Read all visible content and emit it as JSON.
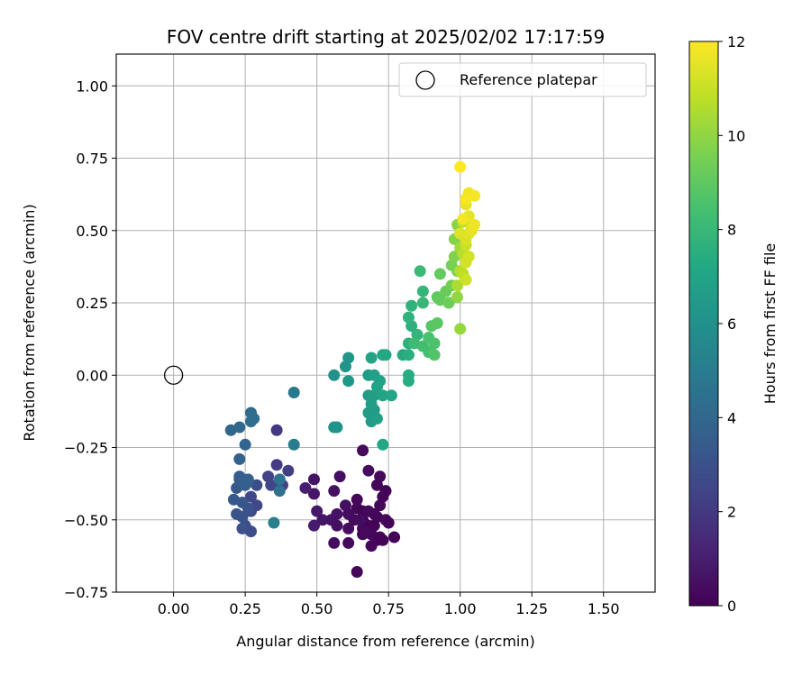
{
  "chart_data": {
    "type": "scatter",
    "title": "FOV centre drift starting at 2025/02/02 17:17:59",
    "xlabel": "Angular distance from reference (arcmin)",
    "ylabel": "Rotation from reference (arcmin)",
    "xlim": [
      -0.2,
      1.68
    ],
    "ylim": [
      -0.75,
      1.11
    ],
    "xticks": [
      "0.00",
      "0.25",
      "0.50",
      "0.75",
      "1.00",
      "1.25",
      "1.50"
    ],
    "xtick_values": [
      0,
      0.25,
      0.5,
      0.75,
      1.0,
      1.25,
      1.5
    ],
    "yticks": [
      "−0.75",
      "−0.50",
      "−0.25",
      "0.00",
      "0.25",
      "0.50",
      "0.75",
      "1.00"
    ],
    "ytick_values": [
      -0.75,
      -0.5,
      -0.25,
      0,
      0.25,
      0.5,
      0.75,
      1.0
    ],
    "grid": true,
    "legend": {
      "position": "top-right",
      "entries": [
        {
          "label": "Reference platepar",
          "marker": "open-circle",
          "x": 0.0,
          "y": 0.0
        }
      ]
    },
    "colorbar": {
      "label": "Hours from first FF file",
      "colormap": "viridis",
      "range": [
        0,
        12
      ],
      "ticks": [
        "0",
        "2",
        "4",
        "6",
        "8",
        "10",
        "12"
      ],
      "tick_values": [
        0,
        2,
        4,
        6,
        8,
        10,
        12
      ]
    },
    "points": [
      [
        0.64,
        -0.68,
        0.2
      ],
      [
        0.66,
        -0.26,
        0.3
      ],
      [
        0.68,
        -0.33,
        0.4
      ],
      [
        0.72,
        -0.35,
        0.3
      ],
      [
        0.58,
        -0.35,
        0.5
      ],
      [
        0.49,
        -0.36,
        0.6
      ],
      [
        0.56,
        -0.4,
        0.5
      ],
      [
        0.49,
        -0.41,
        0.7
      ],
      [
        0.6,
        -0.45,
        0.5
      ],
      [
        0.61,
        -0.48,
        0.4
      ],
      [
        0.57,
        -0.48,
        0.6
      ],
      [
        0.5,
        -0.47,
        0.8
      ],
      [
        0.52,
        -0.5,
        0.7
      ],
      [
        0.49,
        -0.52,
        0.9
      ],
      [
        0.57,
        -0.52,
        0.5
      ],
      [
        0.61,
        -0.53,
        0.4
      ],
      [
        0.61,
        -0.58,
        0.3
      ],
      [
        0.56,
        -0.58,
        0.4
      ],
      [
        0.63,
        -0.5,
        0.3
      ],
      [
        0.64,
        -0.46,
        0.2
      ],
      [
        0.64,
        -0.43,
        0.2
      ],
      [
        0.66,
        -0.47,
        0.1
      ],
      [
        0.66,
        -0.5,
        0.1
      ],
      [
        0.66,
        -0.53,
        0.2
      ],
      [
        0.66,
        -0.55,
        0.1
      ],
      [
        0.68,
        -0.52,
        0.1
      ],
      [
        0.69,
        -0.55,
        0.2
      ],
      [
        0.69,
        -0.59,
        0.2
      ],
      [
        0.7,
        -0.52,
        0.1
      ],
      [
        0.71,
        -0.49,
        0.1
      ],
      [
        0.71,
        -0.57,
        0.2
      ],
      [
        0.72,
        -0.45,
        0.2
      ],
      [
        0.72,
        -0.56,
        0.1
      ],
      [
        0.73,
        -0.57,
        0.1
      ],
      [
        0.74,
        -0.5,
        0.2
      ],
      [
        0.75,
        -0.51,
        0.1
      ],
      [
        0.77,
        -0.56,
        0.1
      ],
      [
        0.73,
        -0.42,
        0.1
      ],
      [
        0.71,
        -0.38,
        0.2
      ],
      [
        0.68,
        -0.47,
        0.3
      ],
      [
        0.67,
        -0.54,
        0.3
      ],
      [
        0.65,
        -0.5,
        0.4
      ],
      [
        0.7,
        -0.48,
        0.2
      ],
      [
        0.74,
        -0.4,
        0.1
      ],
      [
        0.55,
        -0.5,
        0.6
      ],
      [
        0.46,
        -0.39,
        1.0
      ],
      [
        0.36,
        -0.19,
        2.0
      ],
      [
        0.36,
        -0.31,
        2.1
      ],
      [
        0.4,
        -0.33,
        2.2
      ],
      [
        0.38,
        -0.38,
        2.3
      ],
      [
        0.33,
        -0.35,
        2.4
      ],
      [
        0.34,
        -0.38,
        2.5
      ],
      [
        0.29,
        -0.38,
        2.8
      ],
      [
        0.29,
        -0.45,
        2.6
      ],
      [
        0.27,
        -0.42,
        2.6
      ],
      [
        0.27,
        -0.47,
        2.7
      ],
      [
        0.25,
        -0.52,
        2.8
      ],
      [
        0.27,
        -0.54,
        2.9
      ],
      [
        0.24,
        -0.53,
        3.0
      ],
      [
        0.22,
        -0.48,
        3.0
      ],
      [
        0.24,
        -0.49,
        3.1
      ],
      [
        0.26,
        -0.46,
        3.1
      ],
      [
        0.24,
        -0.44,
        3.2
      ],
      [
        0.21,
        -0.43,
        3.3
      ],
      [
        0.22,
        -0.39,
        3.3
      ],
      [
        0.23,
        -0.36,
        3.4
      ],
      [
        0.23,
        -0.35,
        3.5
      ],
      [
        0.24,
        -0.37,
        3.5
      ],
      [
        0.26,
        -0.37,
        3.6
      ],
      [
        0.25,
        -0.38,
        3.6
      ],
      [
        0.23,
        -0.29,
        3.8
      ],
      [
        0.25,
        -0.24,
        3.9
      ],
      [
        0.26,
        -0.36,
        3.7
      ],
      [
        0.2,
        -0.19,
        4.0
      ],
      [
        0.23,
        -0.18,
        4.1
      ],
      [
        0.27,
        -0.13,
        4.2
      ],
      [
        0.27,
        -0.16,
        4.3
      ],
      [
        0.28,
        -0.15,
        4.3
      ],
      [
        0.37,
        -0.4,
        4.4
      ],
      [
        0.37,
        -0.36,
        4.5
      ],
      [
        0.42,
        -0.06,
        4.8
      ],
      [
        0.42,
        -0.24,
        5.0
      ],
      [
        0.35,
        -0.51,
        5.2
      ],
      [
        0.57,
        -0.18,
        6.0
      ],
      [
        0.56,
        -0.18,
        6.1
      ],
      [
        0.56,
        0.0,
        6.1
      ],
      [
        0.6,
        0.03,
        6.2
      ],
      [
        0.61,
        0.06,
        6.3
      ],
      [
        0.61,
        -0.02,
        6.3
      ],
      [
        0.68,
        0.0,
        6.5
      ],
      [
        0.68,
        -0.07,
        6.5
      ],
      [
        0.68,
        -0.13,
        6.6
      ],
      [
        0.69,
        -0.16,
        6.6
      ],
      [
        0.7,
        -0.12,
        6.6
      ],
      [
        0.69,
        -0.1,
        6.7
      ],
      [
        0.7,
        -0.07,
        6.7
      ],
      [
        0.71,
        -0.15,
        6.8
      ],
      [
        0.7,
        0.0,
        6.8
      ],
      [
        0.72,
        -0.02,
        6.9
      ],
      [
        0.71,
        -0.04,
        6.9
      ],
      [
        0.73,
        -0.07,
        7.0
      ],
      [
        0.69,
        0.06,
        7.0
      ],
      [
        0.73,
        0.07,
        7.1
      ],
      [
        0.76,
        -0.07,
        7.1
      ],
      [
        0.74,
        0.07,
        7.2
      ],
      [
        0.73,
        -0.24,
        7.2
      ],
      [
        0.8,
        0.07,
        7.3
      ],
      [
        0.82,
        0.0,
        7.4
      ],
      [
        0.82,
        -0.02,
        7.4
      ],
      [
        0.82,
        0.07,
        7.5
      ],
      [
        0.82,
        0.11,
        7.6
      ],
      [
        0.83,
        0.17,
        7.6
      ],
      [
        0.82,
        0.2,
        7.7
      ],
      [
        0.83,
        0.24,
        7.7
      ],
      [
        0.85,
        0.14,
        7.8
      ],
      [
        0.87,
        0.29,
        7.9
      ],
      [
        0.87,
        0.25,
        8.0
      ],
      [
        0.86,
        0.36,
        8.1
      ],
      [
        0.84,
        0.11,
        8.2
      ],
      [
        0.87,
        0.1,
        8.3
      ],
      [
        0.89,
        0.08,
        8.4
      ],
      [
        0.89,
        0.13,
        8.5
      ],
      [
        0.91,
        0.11,
        8.6
      ],
      [
        0.91,
        0.07,
        8.7
      ],
      [
        0.9,
        0.17,
        8.8
      ],
      [
        0.92,
        0.18,
        8.9
      ],
      [
        0.92,
        0.27,
        9.0
      ],
      [
        0.93,
        0.26,
        9.1
      ],
      [
        0.93,
        0.35,
        9.1
      ],
      [
        0.95,
        0.29,
        9.2
      ],
      [
        0.96,
        0.25,
        9.3
      ],
      [
        0.97,
        0.31,
        9.4
      ],
      [
        0.97,
        0.38,
        9.5
      ],
      [
        0.99,
        0.36,
        9.6
      ],
      [
        0.98,
        0.41,
        9.7
      ],
      [
        0.98,
        0.47,
        9.8
      ],
      [
        0.99,
        0.52,
        9.9
      ],
      [
        0.99,
        0.27,
        10.0
      ],
      [
        1.0,
        0.16,
        10.1
      ],
      [
        1.0,
        0.44,
        10.3
      ],
      [
        1.0,
        0.49,
        10.4
      ],
      [
        0.99,
        0.31,
        10.5
      ],
      [
        1.0,
        0.36,
        10.6
      ],
      [
        1.01,
        0.42,
        10.7
      ],
      [
        1.01,
        0.35,
        10.8
      ],
      [
        1.01,
        0.53,
        10.9
      ],
      [
        1.02,
        0.45,
        11.0
      ],
      [
        1.02,
        0.33,
        11.1
      ],
      [
        1.03,
        0.41,
        11.2
      ],
      [
        1.02,
        0.47,
        11.3
      ],
      [
        1.03,
        0.49,
        11.4
      ],
      [
        1.04,
        0.51,
        11.5
      ],
      [
        1.03,
        0.55,
        11.5
      ],
      [
        1.02,
        0.59,
        11.6
      ],
      [
        1.03,
        0.63,
        11.7
      ],
      [
        1.05,
        0.62,
        11.8
      ],
      [
        1.01,
        0.54,
        11.8
      ],
      [
        1.0,
        0.72,
        12.0
      ],
      [
        1.02,
        0.61,
        11.9
      ],
      [
        1.04,
        0.5,
        11.6
      ],
      [
        1.05,
        0.52,
        11.7
      ],
      [
        1.0,
        0.49,
        11.4
      ],
      [
        1.02,
        0.39,
        11.2
      ]
    ]
  }
}
